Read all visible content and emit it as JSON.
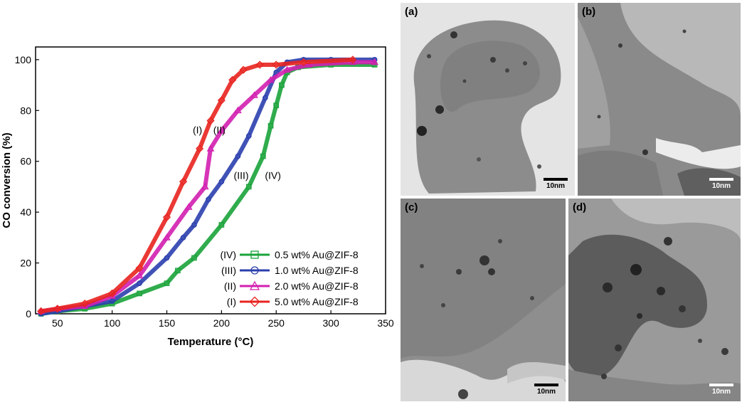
{
  "chart_data": {
    "type": "scatter",
    "title": "",
    "xlabel": "Temperature (°C)",
    "ylabel": "CO conversion (%)",
    "xlim": [
      30,
      350
    ],
    "ylim": [
      0,
      105
    ],
    "xticks": [
      50,
      100,
      150,
      200,
      250,
      300,
      350
    ],
    "yticks": [
      0,
      20,
      40,
      60,
      80,
      100
    ],
    "legend_position": "bottom-right",
    "series": [
      {
        "name": "0.5 wt% Au@ZIF-8",
        "roman": "(IV)",
        "marker": "square",
        "color": "#1aa33a",
        "x": [
          35,
          50,
          75,
          100,
          125,
          150,
          160,
          175,
          200,
          225,
          238,
          245,
          250,
          255,
          260,
          270,
          300,
          340
        ],
        "y": [
          0,
          1,
          2,
          4,
          8,
          12,
          17,
          22,
          35,
          50,
          62,
          74,
          82,
          90,
          95,
          97,
          98,
          98
        ]
      },
      {
        "name": "1.0 wt% Au@ZIF-8",
        "roman": "(III)",
        "marker": "circle",
        "color": "#2b3fae",
        "x": [
          35,
          50,
          75,
          100,
          125,
          150,
          165,
          175,
          188,
          200,
          215,
          225,
          240,
          250,
          260,
          275,
          300,
          340
        ],
        "y": [
          0,
          1,
          3,
          5,
          12,
          22,
          30,
          35,
          45,
          52,
          62,
          70,
          85,
          95,
          99,
          100,
          100,
          100
        ]
      },
      {
        "name": "2.0 wt% Au@ZIF-8",
        "roman": "(II)",
        "marker": "triangle",
        "color": "#d21fb0",
        "x": [
          35,
          50,
          75,
          100,
          125,
          150,
          170,
          185,
          190,
          200,
          215,
          230,
          245,
          260,
          280,
          320,
          340
        ],
        "y": [
          1,
          2,
          3,
          7,
          15,
          30,
          42,
          50,
          65,
          72,
          80,
          86,
          92,
          96,
          98,
          99,
          99
        ]
      },
      {
        "name": "5.0 wt% Au@ZIF-8",
        "roman": "(I)",
        "marker": "diamond",
        "color": "#e8231f",
        "x": [
          35,
          50,
          75,
          100,
          125,
          150,
          165,
          180,
          190,
          200,
          210,
          220,
          235,
          250,
          275,
          320
        ],
        "y": [
          1,
          2,
          4,
          8,
          18,
          38,
          52,
          65,
          76,
          84,
          92,
          96,
          98,
          98,
          99,
          100
        ]
      }
    ],
    "annotations": [
      {
        "text": "(I)",
        "x": 178,
        "y": 71
      },
      {
        "text": "(II)",
        "x": 198,
        "y": 71
      },
      {
        "text": "(III)",
        "x": 218,
        "y": 53
      },
      {
        "text": "(IV)",
        "x": 247,
        "y": 53
      }
    ]
  },
  "tem_images": [
    {
      "label": "(a)",
      "scale": "10nm"
    },
    {
      "label": "(b)",
      "scale": "10nm"
    },
    {
      "label": "(c)",
      "scale": "10nm"
    },
    {
      "label": "(d)",
      "scale": "10nm"
    }
  ]
}
